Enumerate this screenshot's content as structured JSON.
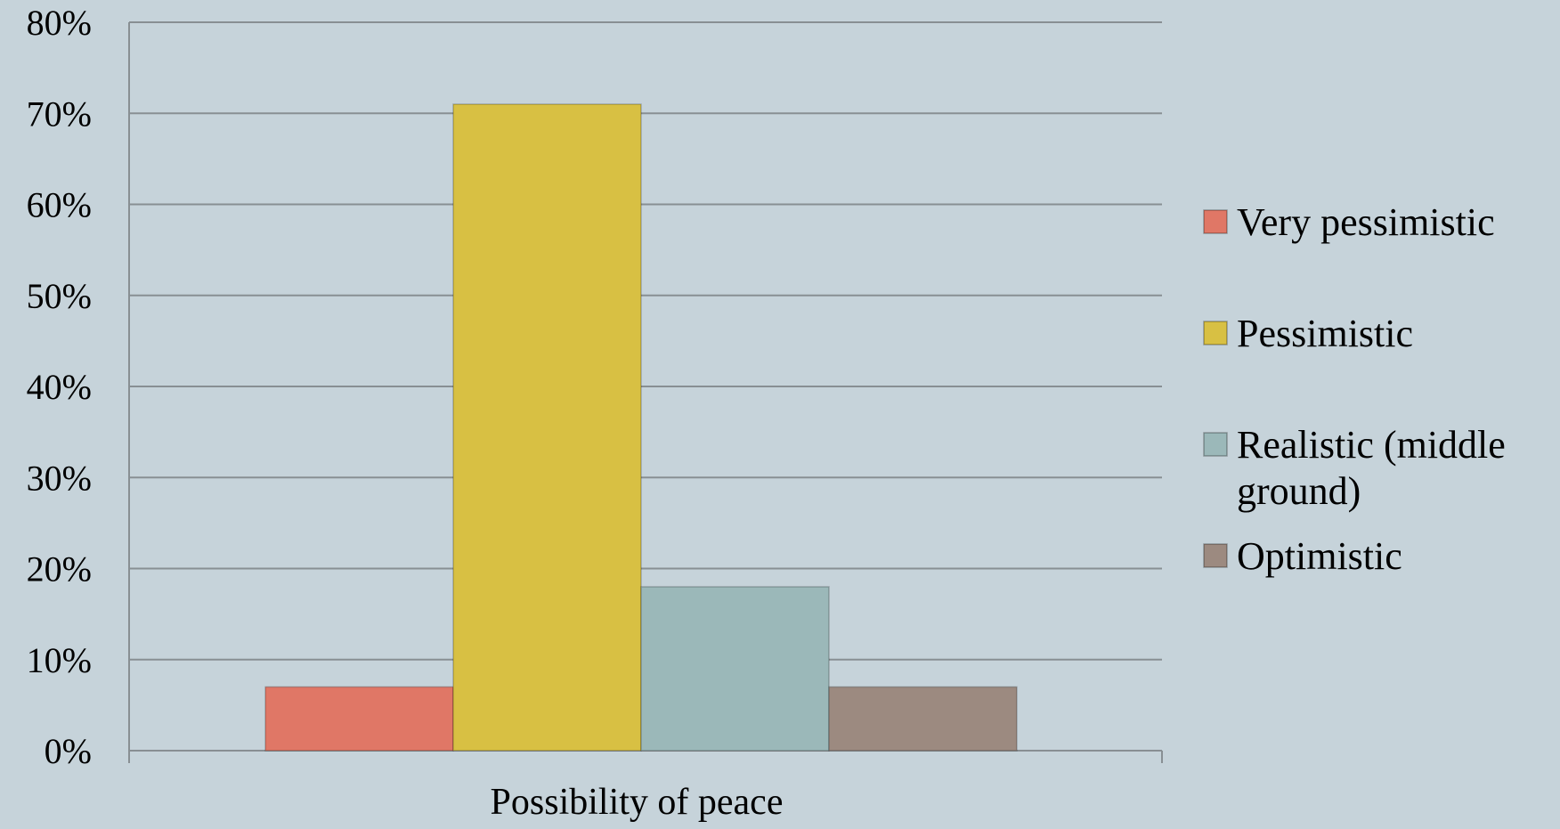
{
  "chart_data": {
    "type": "bar",
    "categories": [
      "Possibility of peace"
    ],
    "series": [
      {
        "name": "Very pessimistic",
        "values": [
          7
        ],
        "color": "#e07766"
      },
      {
        "name": "Pessimistic",
        "values": [
          71
        ],
        "color": "#d8c043"
      },
      {
        "name": "Realistic (middle ground)",
        "values": [
          18
        ],
        "color": "#9bb8b9"
      },
      {
        "name": "Optimistic",
        "values": [
          7
        ],
        "color": "#9c8a80"
      }
    ],
    "title": "",
    "xlabel": "Possibility of peace",
    "ylabel": "",
    "ylim": [
      0,
      80
    ],
    "yticks": [
      "0%",
      "10%",
      "20%",
      "30%",
      "40%",
      "50%",
      "60%",
      "70%",
      "80%"
    ],
    "grid": true,
    "legend": "right",
    "colors": {
      "background": "#c6d3da",
      "gridline": "#888f93"
    }
  }
}
